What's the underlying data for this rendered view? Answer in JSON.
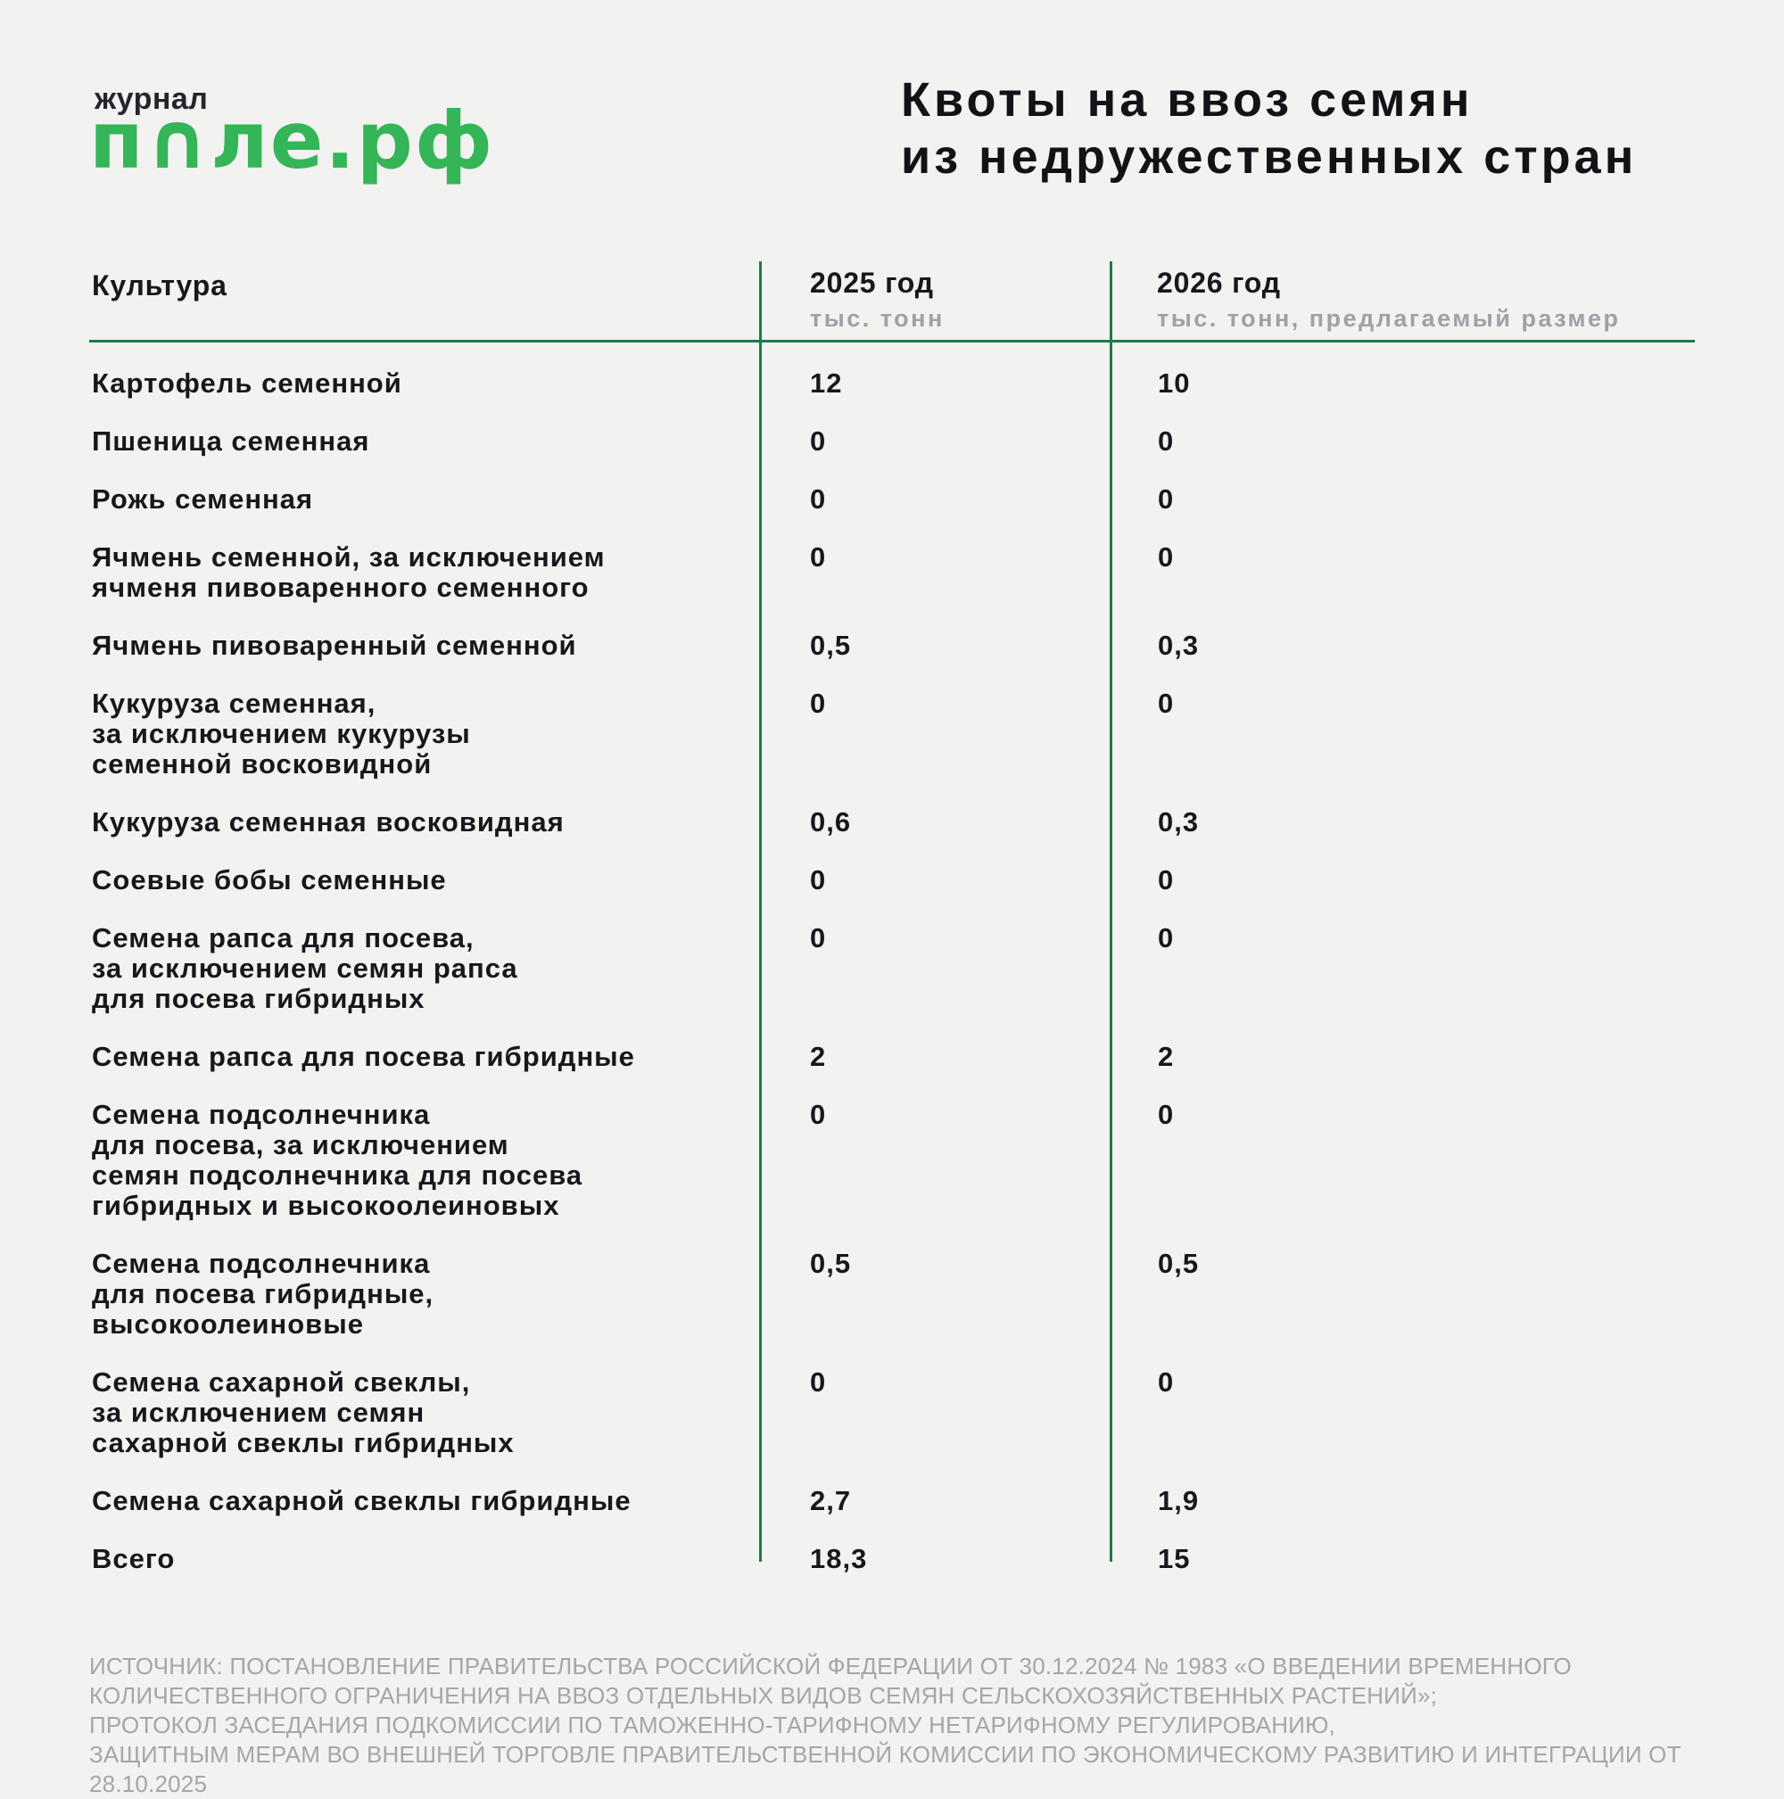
{
  "logo": {
    "tagline": "журнал",
    "brand_p": "п",
    "brand_o": "∩",
    "brand_rest": "ле.рф",
    "brand_full": "поле.рф",
    "brand_color": "#33b558"
  },
  "title": {
    "text": "Квоты на ввоз семян\nиз недружественных стран"
  },
  "table": {
    "line_color": "#1d7a4a",
    "columns": {
      "culture_label": "Культура",
      "y2025_label": "2025 год",
      "y2025_unit": "тыс. тонн",
      "y2026_label": "2026 год",
      "y2026_unit": "тыс. тонн, предлагаемый размер"
    },
    "rows": [
      {
        "culture": "Картофель семенной",
        "v2025": "12",
        "v2026": "10"
      },
      {
        "culture": "Пшеница семенная",
        "v2025": "0",
        "v2026": "0"
      },
      {
        "culture": "Рожь семенная",
        "v2025": "0",
        "v2026": "0"
      },
      {
        "culture": "Ячмень семенной, за исключением\nячменя пивоваренного семенного",
        "v2025": "0",
        "v2026": "0"
      },
      {
        "culture": "Ячмень пивоваренный семенной",
        "v2025": "0,5",
        "v2026": "0,3"
      },
      {
        "culture": "Кукуруза семенная,\nза исключением кукурузы\nсеменной восковидной",
        "v2025": "0",
        "v2026": "0"
      },
      {
        "culture": "Кукуруза семенная восковидная",
        "v2025": "0,6",
        "v2026": "0,3"
      },
      {
        "culture": "Соевые бобы семенные",
        "v2025": "0",
        "v2026": "0"
      },
      {
        "culture": "Семена рапса для посева,\nза исключением семян рапса\nдля посева гибридных",
        "v2025": "0",
        "v2026": "0"
      },
      {
        "culture": "Семена рапса для посева гибридные",
        "v2025": "2",
        "v2026": "2"
      },
      {
        "culture": "Семена подсолнечника\nдля посева, за исключением\nсемян подсолнечника для посева\nгибридных и высокоолеиновых",
        "v2025": "0",
        "v2026": "0"
      },
      {
        "culture": "Семена подсолнечника\nдля посева гибридные,\nвысокоолеиновые",
        "v2025": "0,5",
        "v2026": "0,5"
      },
      {
        "culture": "Семена сахарной свеклы,\nза исключением семян\nсахарной свеклы гибридных",
        "v2025": "0",
        "v2026": "0"
      },
      {
        "culture": "Семена сахарной свеклы гибридные",
        "v2025": "2,7",
        "v2026": "1,9"
      },
      {
        "culture": "Всего",
        "v2025": "18,3",
        "v2026": "15"
      }
    ]
  },
  "source": {
    "lines": [
      "ИСТОЧНИК: ПОСТАНОВЛЕНИЕ ПРАВИТЕЛЬСТВА РОССИЙСКОЙ ФЕДЕРАЦИИ ОТ 30.12.2024 № 1983 «О ВВЕДЕНИИ ВРЕМЕННОГО",
      "КОЛИЧЕСТВЕННОГО ОГРАНИЧЕНИЯ НА ВВОЗ ОТДЕЛЬНЫХ ВИДОВ СЕМЯН СЕЛЬСКОХОЗЯЙСТВЕННЫХ РАСТЕНИЙ»;",
      "ПРОТОКОЛ ЗАСЕДАНИЯ ПОДКОМИССИИ ПО ТАМОЖЕННО-ТАРИФНОМУ НЕТАРИФНОМУ РЕГУЛИРОВАНИЮ,",
      "ЗАЩИТНЫМ МЕРАМ ВО ВНЕШНЕЙ ТОРГОВЛЕ ПРАВИТЕЛЬСТВЕННОЙ КОМИССИИ ПО ЭКОНОМИЧЕСКОМУ РАЗВИТИЮ И ИНТЕГРАЦИИ ОТ 28.10.2025"
    ]
  },
  "colors": {
    "background": "#f2f2f1",
    "text": "#17181c",
    "rule_green": "#1d7a4a",
    "logo_green": "#33b558",
    "muted_gray": "#a29fa6"
  },
  "chart_data": {
    "type": "table",
    "title": "Квоты на ввоз семян из недружественных стран",
    "columns": [
      "Культура",
      "2025 год, тыс. тонн",
      "2026 год, тыс. тонн, предлагаемый размер"
    ],
    "categories": [
      "Картофель семенной",
      "Пшеница семенная",
      "Рожь семенная",
      "Ячмень семенной, за исключением ячменя пивоваренного семенного",
      "Ячмень пивоваренный семенной",
      "Кукуруза семенная, за исключением кукурузы семенной восковидной",
      "Кукуруза семенная восковидная",
      "Соевые бобы семенные",
      "Семена рапса для посева, за исключением семян рапса для посева гибридных",
      "Семена рапса для посева гибридные",
      "Семена подсолнечника для посева, за исключением семян подсолнечника для посева гибридных и высокоолеиновых",
      "Семена подсолнечника для посева гибридные, высокоолеиновые",
      "Семена сахарной свеклы, за исключением семян сахарной свеклы гибридных",
      "Семена сахарной свеклы гибридные",
      "Всего"
    ],
    "series": [
      {
        "name": "2025 год, тыс. тонн",
        "values": [
          12,
          0,
          0,
          0,
          0.5,
          0,
          0.6,
          0,
          0,
          2,
          0,
          0.5,
          0,
          2.7,
          18.3
        ]
      },
      {
        "name": "2026 год, тыс. тонн, предлагаемый размер",
        "values": [
          10,
          0,
          0,
          0,
          0.3,
          0,
          0.3,
          0,
          0,
          2,
          0,
          0.5,
          0,
          1.9,
          15
        ]
      }
    ]
  }
}
